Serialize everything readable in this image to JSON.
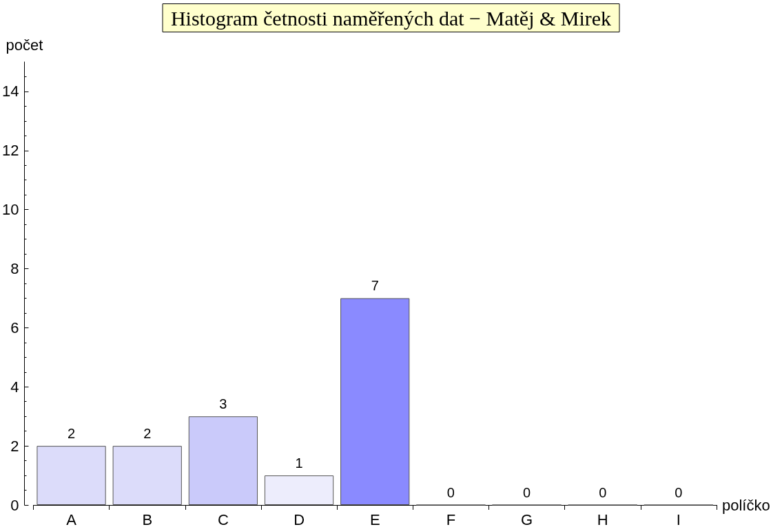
{
  "chart_data": {
    "type": "bar",
    "title": "Histogram četnosti naměřených dat − Matěj & Mirek",
    "xlabel": "políčko",
    "ylabel": "počet",
    "categories": [
      "A",
      "B",
      "C",
      "D",
      "E",
      "F",
      "G",
      "H",
      "I"
    ],
    "values": [
      2,
      2,
      3,
      1,
      7,
      0,
      0,
      0,
      0
    ],
    "colors": [
      "#dcdcfa",
      "#dcdcfa",
      "#cacafa",
      "#ededfc",
      "#8a8aff",
      "#555555",
      "#555555",
      "#555555",
      "#555555"
    ],
    "ylim": [
      0,
      15
    ],
    "yticks": [
      0,
      2,
      4,
      6,
      8,
      10,
      12,
      14
    ],
    "grid": false,
    "data_labels": true
  }
}
